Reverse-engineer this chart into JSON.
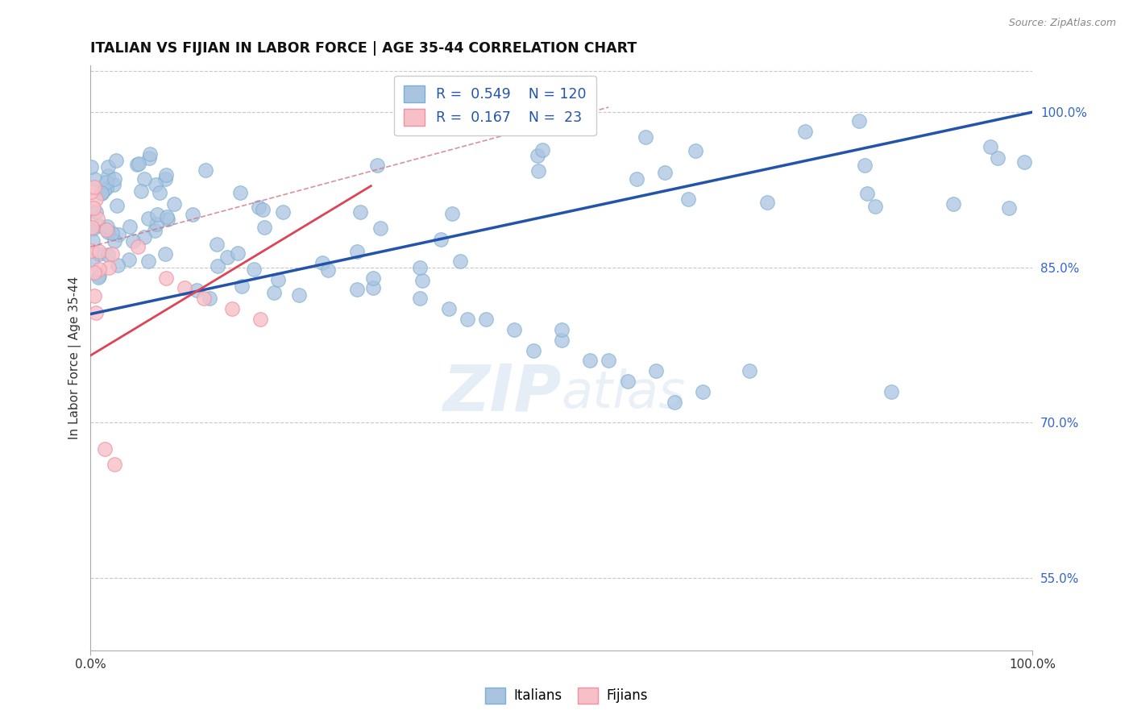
{
  "title": "ITALIAN VS FIJIAN IN LABOR FORCE | AGE 35-44 CORRELATION CHART",
  "source_text": "Source: ZipAtlas.com",
  "ylabel": "In Labor Force | Age 35-44",
  "xlim": [
    0,
    1
  ],
  "ylim": [
    0.48,
    1.045
  ],
  "y_ticks_right": [
    0.55,
    0.7,
    0.85,
    1.0
  ],
  "y_tick_labels_right": [
    "55.0%",
    "70.0%",
    "85.0%",
    "100.0%"
  ],
  "grid_color": "#c8c8c8",
  "background_color": "#ffffff",
  "italian_color_face": "#aac4e0",
  "italian_color_edge": "#7bafd4",
  "fijian_color_face": "#f7c0c8",
  "fijian_color_edge": "#f090a0",
  "italian_trend_color": "#2255aa",
  "fijian_trend_color": "#dd4455",
  "dashed_line_color": "#dd8888",
  "legend_R_italian": "0.549",
  "legend_N_italian": "120",
  "legend_R_fijian": "0.167",
  "legend_N_fijian": "23",
  "watermark_text": "ZIPatlas",
  "legend_text_color": "#2255aa",
  "legend_label_color": "#333333"
}
